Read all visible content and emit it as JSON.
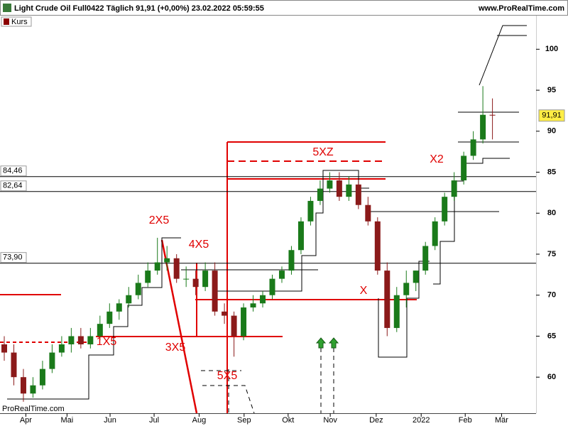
{
  "header": {
    "title": "Light Crude Oil Full0422 Täglich 91,91 (+0,00%) 23.02.2022 05:59:55",
    "site": "www.ProRealTime.com",
    "watermark": "ProRealTime.com"
  },
  "chart_data": {
    "type": "candlestick",
    "series": [
      {
        "name": "Kurs",
        "up_color": "#1a7a1a",
        "down_color": "#8b1a1a",
        "x": [
          0,
          1,
          2,
          3,
          4,
          5,
          6,
          7,
          8,
          9,
          10,
          11,
          12,
          13,
          14,
          15,
          16,
          17,
          18,
          19,
          20,
          21,
          22,
          23,
          24,
          25,
          26,
          27,
          28,
          29,
          30,
          31,
          32,
          33,
          34,
          35,
          36,
          37,
          38,
          39,
          40,
          41,
          42,
          43,
          44,
          45,
          46,
          47,
          48,
          49,
          50,
          51
        ],
        "open": [
          64,
          63,
          60,
          58,
          59,
          61,
          63,
          64,
          65,
          64,
          65,
          66.5,
          68,
          69,
          70,
          71.5,
          73,
          74,
          74.5,
          72,
          72,
          71,
          73,
          68,
          67.5,
          65,
          68.5,
          69,
          70,
          72,
          73,
          75.5,
          79,
          81.5,
          83,
          84,
          82,
          83.5,
          81,
          79,
          73,
          66,
          70,
          71.5,
          73,
          76,
          79,
          82,
          84,
          87,
          89,
          92
        ],
        "high": [
          65,
          64,
          61,
          60,
          62,
          64,
          65,
          66,
          66,
          66,
          67.5,
          69,
          69.5,
          71,
          72.5,
          74,
          77,
          76,
          75,
          73.5,
          73,
          74,
          74,
          69,
          68,
          69,
          70,
          70.5,
          72.5,
          73.5,
          76,
          79.5,
          82,
          84,
          85,
          85,
          84.5,
          84,
          82,
          79.5,
          74,
          71,
          73,
          73,
          76.5,
          79.5,
          82.5,
          85,
          87.5,
          90,
          95.5,
          94
        ],
        "low": [
          62,
          59,
          57,
          57.5,
          58.5,
          60.5,
          62.5,
          63,
          63.5,
          63.5,
          64.5,
          66,
          67,
          68.5,
          69.5,
          71,
          72.5,
          73,
          71.5,
          71,
          70,
          70.5,
          67.5,
          66.5,
          62.5,
          64.5,
          68,
          68.5,
          69.5,
          71.5,
          72.5,
          75,
          78.5,
          81,
          82.5,
          81.5,
          81.5,
          80.5,
          78.5,
          72.5,
          65,
          65.5,
          68.5,
          70.5,
          72.5,
          75.5,
          78.5,
          81.5,
          83.5,
          86.5,
          88.5,
          89
        ],
        "close": [
          63,
          60,
          58,
          59,
          61,
          63,
          64,
          65,
          64,
          65,
          66.5,
          68,
          69,
          70,
          71.5,
          73,
          74,
          74.5,
          72,
          72,
          71,
          73,
          68,
          67.5,
          65,
          68.5,
          69,
          70,
          72,
          73,
          75.5,
          79,
          81.5,
          83,
          84,
          82,
          83.5,
          81,
          79,
          73,
          66,
          70,
          71.5,
          73,
          76,
          79,
          82,
          84,
          87,
          89,
          92,
          91.91
        ]
      }
    ],
    "xlim": [
      0,
      56
    ],
    "ylim": [
      55.6,
      104.1
    ],
    "xticks": [
      {
        "value": 2.7,
        "label": "Apr"
      },
      {
        "value": 7.0,
        "label": "Mai"
      },
      {
        "value": 11.5,
        "label": "Jun"
      },
      {
        "value": 16.1,
        "label": "Jul"
      },
      {
        "value": 20.8,
        "label": "Aug"
      },
      {
        "value": 25.5,
        "label": "Sep"
      },
      {
        "value": 30.1,
        "label": "Okt"
      },
      {
        "value": 34.5,
        "label": "Nov"
      },
      {
        "value": 39.3,
        "label": "Dez"
      },
      {
        "value": 44.0,
        "label": "2022"
      },
      {
        "value": 48.6,
        "label": "Feb"
      },
      {
        "value": 52.4,
        "label": "Mär"
      }
    ],
    "yticks": [
      60,
      65,
      70,
      75,
      80,
      85,
      90,
      95,
      100
    ],
    "levels": [
      {
        "value": 84.46,
        "label": "84,46"
      },
      {
        "value": 82.64,
        "label": "82,64"
      },
      {
        "value": 73.9,
        "label": "73,90"
      }
    ],
    "last_price": {
      "value": 91.91,
      "label": "91,91"
    },
    "annotations": [
      "2X5",
      "4X5",
      "5XZ",
      "X2",
      "X",
      "1X5",
      "3X5",
      "5X5"
    ]
  }
}
